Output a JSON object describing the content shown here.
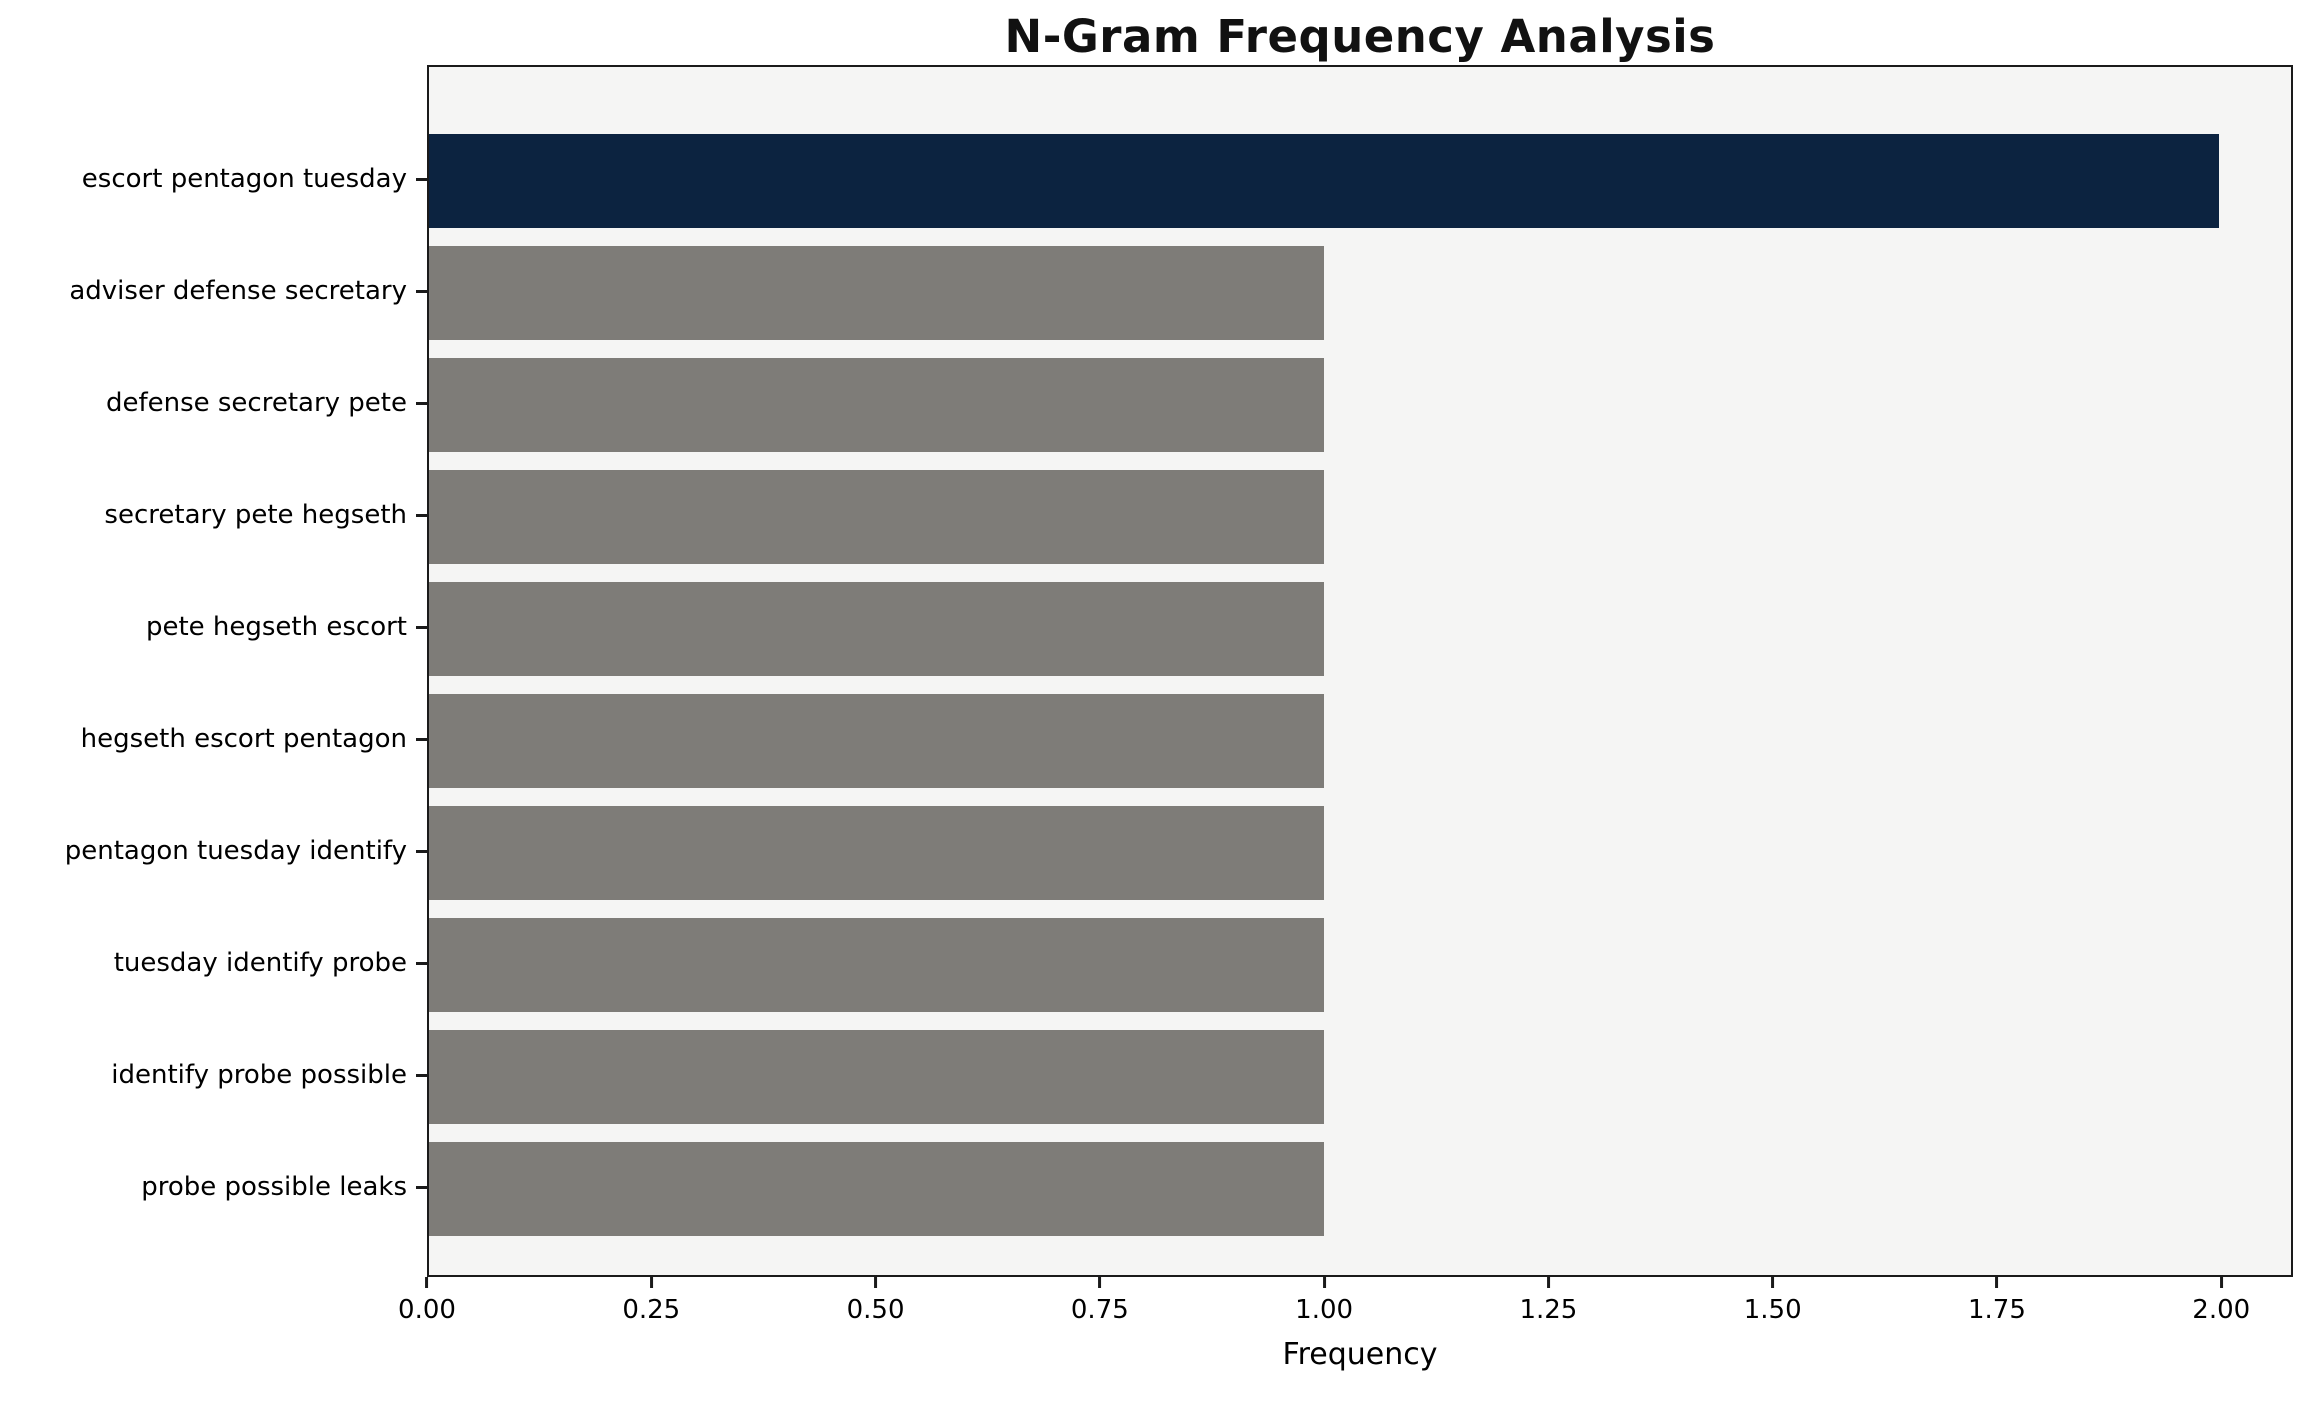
{
  "title": "N-Gram Frequency Analysis",
  "chart_data": {
    "type": "bar",
    "orientation": "horizontal",
    "title": "N-Gram Frequency Analysis",
    "xlabel": "Frequency",
    "ylabel": "",
    "categories": [
      "escort pentagon tuesday",
      "adviser defense secretary",
      "defense secretary pete",
      "secretary pete hegseth",
      "pete hegseth escort",
      "hegseth escort pentagon",
      "pentagon tuesday identify",
      "tuesday identify probe",
      "identify probe possible",
      "probe possible leaks"
    ],
    "values": [
      2,
      1,
      1,
      1,
      1,
      1,
      1,
      1,
      1,
      1
    ],
    "bar_colors": [
      "#0c2340",
      "#7e7c78",
      "#7e7c78",
      "#7e7c78",
      "#7e7c78",
      "#7e7c78",
      "#7e7c78",
      "#7e7c78",
      "#7e7c78",
      "#7e7c78"
    ],
    "xlim": [
      0,
      2.08
    ],
    "x_ticks": [
      0,
      0.25,
      0.5,
      0.75,
      1.0,
      1.25,
      1.5,
      1.75,
      2.0
    ],
    "x_tick_labels": [
      "0.00",
      "0.25",
      "0.50",
      "0.75",
      "1.00",
      "1.25",
      "1.50",
      "1.75",
      "2.00"
    ],
    "grid": false,
    "legend": "none",
    "colors": {
      "highlight_bar": "#0c2340",
      "default_bar": "#7e7c78",
      "plot_background": "#f5f5f4",
      "spine": "#1a1a1a"
    }
  }
}
